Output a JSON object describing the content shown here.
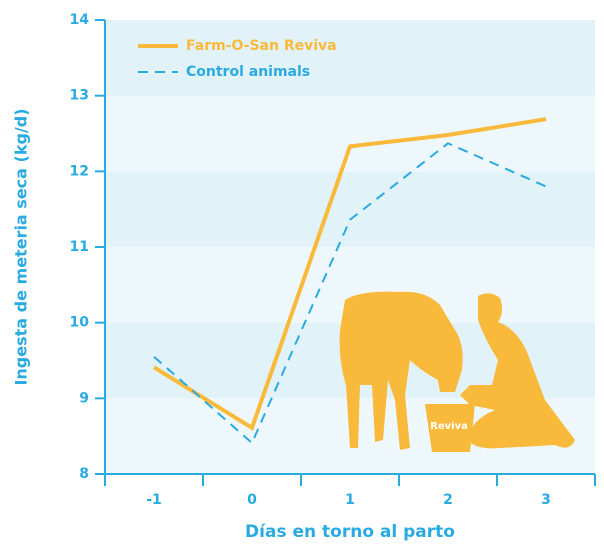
{
  "chart_data": {
    "type": "line",
    "x_label": "Días en torno al parto",
    "y_label": "Ingesta de meteria seca (kg/d)",
    "categories": [
      "-1",
      "0",
      "1",
      "2",
      "3"
    ],
    "series": [
      {
        "name": "Farm-O-San Reviva",
        "color": "#f9b93a",
        "dash": "none",
        "values": [
          9.41,
          8.61,
          12.33,
          12.48,
          12.69
        ]
      },
      {
        "name": "Control animals",
        "color": "#29abe2",
        "dash": "10,7",
        "values": [
          9.55,
          8.41,
          11.36,
          12.37,
          11.8
        ]
      }
    ],
    "ylim": [
      8,
      14
    ],
    "yticks": [
      8,
      9,
      10,
      11,
      12,
      13,
      14
    ],
    "annotation": "Reviva"
  }
}
